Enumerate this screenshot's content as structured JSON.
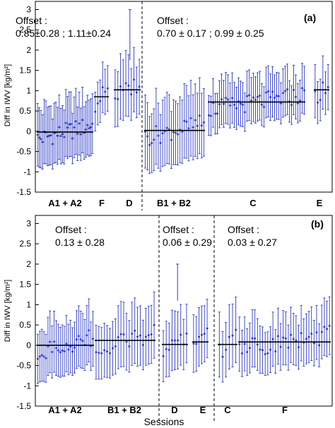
{
  "chart_data": [
    {
      "type": "scatter",
      "panel_label": "(a)",
      "ylabel": "Diff in IWV [kg/m²]",
      "xlabel": "",
      "ylim": [
        -1.5,
        3.2
      ],
      "yticks": [
        "-1.5",
        "-1",
        "-0.5",
        "0",
        "0.5",
        "1",
        "1.5",
        "2",
        "2.5",
        "3"
      ],
      "offset_label": "Offset :",
      "offset_left": "0.85±0.28 ; 1.11±0.24",
      "offset_right": "0.70 ± 0.17 ; 0.99 ± 0.25",
      "groups": [
        {
          "label": "A1 + A2",
          "n": 34,
          "offset": -0.02,
          "spread": 0.72
        },
        {
          "label": "F",
          "n": 6,
          "offset": 0.85,
          "spread": 0.55
        },
        {
          "label": "D",
          "n": 10,
          "offset": 1.02,
          "spread": 0.72
        },
        {
          "label": "B1 + B2",
          "n": 28,
          "offset": 0.02,
          "spread": 0.82
        },
        {
          "label": "C",
          "n": 46,
          "offset": 0.72,
          "spread": 0.55
        },
        {
          "label": "E",
          "n": 6,
          "offset": 1.02,
          "spread": 0.6
        }
      ],
      "annotations": [
        {
          "group": "D",
          "y_from": 3.0,
          "y_to": 1.75
        }
      ]
    },
    {
      "type": "scatter",
      "panel_label": "(b)",
      "ylabel": "Diff in IWV [kg/m²]",
      "xlabel": "Sessions",
      "ylim": [
        -1.5,
        3.2
      ],
      "yticks": [
        "-1.5",
        "-1",
        "-0.5",
        "0",
        "0.5",
        "1",
        "1.5",
        "2",
        "2.5",
        "3"
      ],
      "offset_label": "Offset :",
      "offsets": [
        "0.13 ± 0.28",
        "0.06 ± 0.29",
        "0.03 ± 0.27"
      ],
      "groups": [
        {
          "label": "A1 + A2",
          "n": 28,
          "offset": 0.0,
          "spread": 0.68
        },
        {
          "label": "B1 + B2",
          "n": 22,
          "offset": 0.12,
          "spread": 0.72
        },
        {
          "label": "D",
          "n": 9,
          "offset": 0.02,
          "spread": 0.68
        },
        {
          "label": "E",
          "n": 6,
          "offset": 0.08,
          "spread": 0.65
        },
        {
          "label": "C",
          "n": 6,
          "offset": 0.02,
          "spread": 0.72
        },
        {
          "label": "F",
          "n": 36,
          "offset": 0.08,
          "spread": 0.62
        }
      ],
      "annotations": [
        {
          "group": "D",
          "y_from": 2.0,
          "y_to": 1.1
        }
      ]
    }
  ],
  "colors": {
    "series": "#2f3cc4",
    "fit": "#000000"
  }
}
